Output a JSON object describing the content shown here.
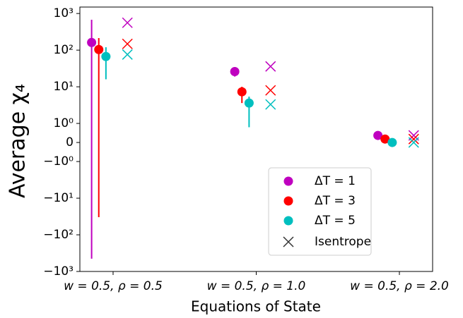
{
  "chart_data": {
    "type": "errorbar_scatter",
    "xlabel": "Equations of State",
    "ylabel": "Average χ₄",
    "yscale": "symlog",
    "linthresh": 1,
    "xlim": [
      -0.232,
      2.232
    ],
    "ylim": [
      -1000,
      1500
    ],
    "xticks": [
      {
        "value": 0,
        "label": "w = 0.5, ρ = 0.5"
      },
      {
        "value": 1,
        "label": "w = 0.5, ρ = 1.0"
      },
      {
        "value": 2,
        "label": "w = 0.5, ρ = 2.0"
      }
    ],
    "yticks": [
      {
        "value": 1000,
        "label": "10³"
      },
      {
        "value": 100,
        "label": "10²"
      },
      {
        "value": 10,
        "label": "10¹"
      },
      {
        "value": 1,
        "label": "10⁰"
      },
      0,
      {
        "value": -1,
        "label": "−10⁰"
      },
      {
        "value": -10,
        "label": "−10¹"
      },
      {
        "value": -100,
        "label": "−10²"
      },
      {
        "value": -1000,
        "label": "−10³"
      }
    ],
    "series": [
      {
        "name": "ΔT = 1",
        "color": "#bf00bf",
        "x": [
          -0.15,
          0.85,
          1.85
        ],
        "values": [
          162,
          26,
          0.37
        ],
        "errors": [
          [
            609,
            514
          ],
          [
            7,
            8
          ],
          [
            0,
            0
          ]
        ],
        "isentrope_x": [
          0.1,
          1.1,
          2.1
        ],
        "isentrope_values": [
          560,
          36,
          0.37
        ]
      },
      {
        "name": "ΔT = 3",
        "color": "#ff0000",
        "x": [
          -0.1,
          0.9,
          1.9
        ],
        "values": [
          104,
          7.3,
          0.18
        ],
        "errors": [
          [
            137,
            109
          ],
          [
            3.7,
            2.7
          ],
          [
            0,
            0
          ]
        ],
        "isentrope_x": [
          0.1,
          1.1,
          2.1
        ],
        "isentrope_values": [
          148,
          8,
          0.18
        ]
      },
      {
        "name": "ΔT = 5",
        "color": "#00bfbf",
        "x": [
          -0.05,
          0.95,
          1.95
        ],
        "values": [
          67,
          3.6,
          0
        ],
        "errors": [
          [
            51,
            53
          ],
          [
            2.8,
            1.8
          ],
          [
            0,
            0
          ]
        ],
        "isentrope_x": [
          0.1,
          1.1,
          2.1
        ],
        "isentrope_values": [
          76,
          3.3,
          0
        ]
      }
    ],
    "isentrope_label": "Isentrope",
    "isentrope_color": "#333333",
    "legend": "lower right"
  }
}
